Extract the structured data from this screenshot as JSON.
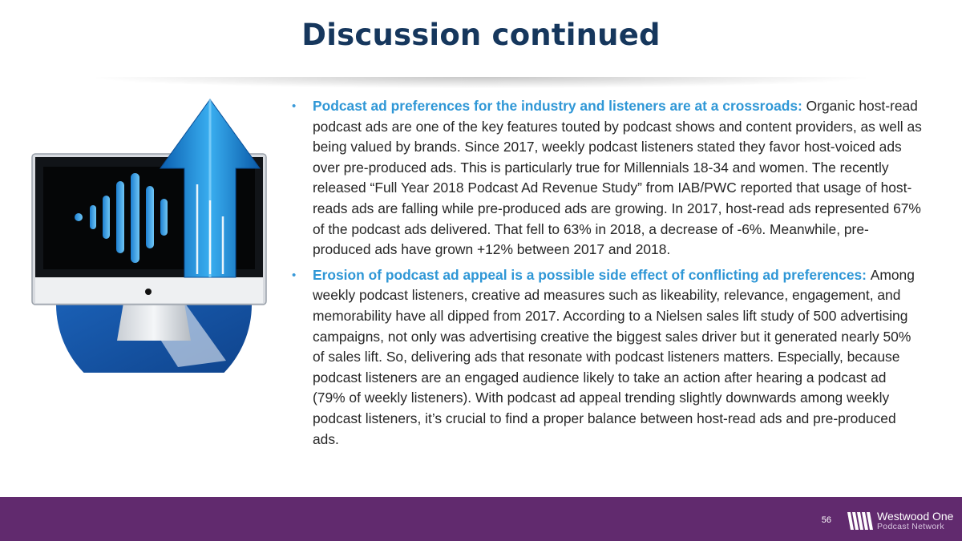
{
  "slide": {
    "title": "Discussion continued",
    "page_number": "56"
  },
  "bullets": [
    {
      "lead": "Podcast ad preferences for the industry and listeners are at a crossroads",
      "separator": ": ",
      "text": "Organic host-read podcast ads are one of the key features touted by podcast shows and content providers, as well as being valued by brands. Since 2017, weekly podcast listeners stated they favor host-voiced ads over pre-produced ads. This is particularly true for Millennials 18-34 and women. The recently released “Full Year 2018 Podcast Ad Revenue Study” from IAB/PWC reported that usage of host-reads ads are falling while pre-produced ads are growing. In 2017, host-read ads represented 67% of the podcast ads delivered. That fell to 63% in 2018, a decrease of -6%. Meanwhile, pre-produced ads have grown +12% between 2017 and 2018."
    },
    {
      "lead": "Erosion of podcast ad appeal is a possible side effect of conflicting ad preferences",
      "separator": ": ",
      "text": "Among weekly podcast listeners, creative ad measures such as likeability, relevance, engagement, and memorability have all dipped from 2017. According to a Nielsen sales lift study of 500 advertising campaigns, not only was advertising creative the biggest sales driver but it generated nearly 50% of sales lift. So, delivering ads that resonate with podcast listeners matters. Especially, because podcast listeners are an engaged audience likely to take an action after hearing a podcast ad (79% of weekly listeners). With podcast ad appeal trending slightly downwards among weekly podcast listeners, it’s crucial to find a proper balance between host-read ads and pre-produced ads."
    }
  ],
  "footer": {
    "brand_name": "Westwood One",
    "brand_sub": "Podcast Network"
  },
  "icons": {
    "illustration": "monitor-soundwave-arrow-icon",
    "bullet": "bullet-dot-icon",
    "logo": "westwood-one-logo-icon"
  },
  "colors": {
    "title": "#16375d",
    "lead_text": "#2f97d6",
    "footer_bg": "#612a6e"
  }
}
